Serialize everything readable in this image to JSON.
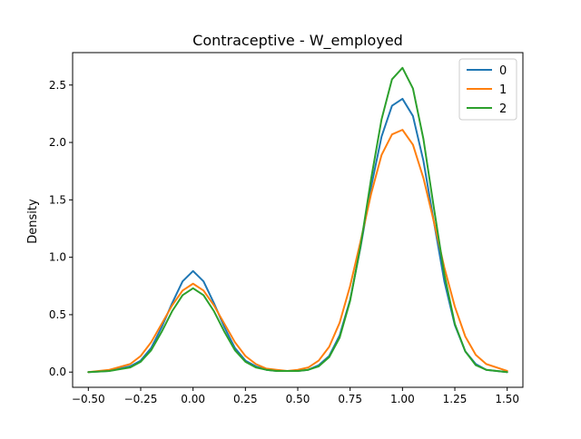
{
  "chart_data": {
    "type": "line",
    "title": "Contraceptive - W_employed",
    "xlabel": "",
    "ylabel": "Density",
    "xlim": [
      -0.575,
      1.575
    ],
    "ylim": [
      -0.1325,
      2.7825
    ],
    "xticks": [
      -0.5,
      -0.25,
      0.0,
      0.25,
      0.5,
      0.75,
      1.0,
      1.25,
      1.5
    ],
    "xtick_labels": [
      "−0.50",
      "−0.25",
      "0.00",
      "0.25",
      "0.50",
      "0.75",
      "1.00",
      "1.25",
      "1.50"
    ],
    "yticks": [
      0.0,
      0.5,
      1.0,
      1.5,
      2.0,
      2.5
    ],
    "ytick_labels": [
      "0.0",
      "0.5",
      "1.0",
      "1.5",
      "2.0",
      "2.5"
    ],
    "grid": false,
    "legend_position": "top-right",
    "series": [
      {
        "name": "0",
        "color": "#1f77b4",
        "x": [
          -0.5,
          -0.4,
          -0.3,
          -0.25,
          -0.2,
          -0.15,
          -0.1,
          -0.05,
          0.0,
          0.05,
          0.1,
          0.15,
          0.2,
          0.25,
          0.3,
          0.35,
          0.4,
          0.45,
          0.5,
          0.55,
          0.6,
          0.65,
          0.7,
          0.75,
          0.8,
          0.85,
          0.9,
          0.95,
          1.0,
          1.05,
          1.1,
          1.15,
          1.2,
          1.25,
          1.3,
          1.35,
          1.4,
          1.5
        ],
        "y": [
          0.0,
          0.01,
          0.05,
          0.1,
          0.21,
          0.39,
          0.6,
          0.79,
          0.88,
          0.79,
          0.6,
          0.39,
          0.21,
          0.1,
          0.05,
          0.02,
          0.01,
          0.01,
          0.01,
          0.02,
          0.06,
          0.14,
          0.32,
          0.63,
          1.09,
          1.61,
          2.05,
          2.32,
          2.38,
          2.23,
          1.84,
          1.31,
          0.79,
          0.41,
          0.18,
          0.07,
          0.02,
          0.0
        ]
      },
      {
        "name": "1",
        "color": "#ff7f0e",
        "x": [
          -0.5,
          -0.4,
          -0.3,
          -0.25,
          -0.2,
          -0.15,
          -0.1,
          -0.05,
          0.0,
          0.05,
          0.1,
          0.15,
          0.2,
          0.25,
          0.3,
          0.35,
          0.4,
          0.45,
          0.5,
          0.55,
          0.6,
          0.65,
          0.7,
          0.75,
          0.8,
          0.85,
          0.9,
          0.95,
          1.0,
          1.05,
          1.1,
          1.15,
          1.2,
          1.25,
          1.3,
          1.35,
          1.4,
          1.5
        ],
        "y": [
          0.0,
          0.02,
          0.07,
          0.14,
          0.26,
          0.42,
          0.58,
          0.71,
          0.77,
          0.71,
          0.58,
          0.42,
          0.26,
          0.14,
          0.07,
          0.03,
          0.02,
          0.01,
          0.02,
          0.04,
          0.1,
          0.22,
          0.43,
          0.75,
          1.14,
          1.55,
          1.89,
          2.07,
          2.11,
          1.98,
          1.69,
          1.31,
          0.91,
          0.57,
          0.31,
          0.15,
          0.07,
          0.01
        ]
      },
      {
        "name": "2",
        "color": "#2ca02c",
        "x": [
          -0.5,
          -0.4,
          -0.3,
          -0.25,
          -0.2,
          -0.15,
          -0.1,
          -0.05,
          0.0,
          0.05,
          0.1,
          0.15,
          0.2,
          0.25,
          0.3,
          0.35,
          0.4,
          0.45,
          0.5,
          0.55,
          0.6,
          0.65,
          0.7,
          0.75,
          0.8,
          0.85,
          0.9,
          0.95,
          1.0,
          1.05,
          1.1,
          1.15,
          1.2,
          1.25,
          1.3,
          1.35,
          1.4,
          1.5
        ],
        "y": [
          0.0,
          0.01,
          0.04,
          0.09,
          0.19,
          0.35,
          0.53,
          0.67,
          0.73,
          0.67,
          0.53,
          0.35,
          0.19,
          0.09,
          0.04,
          0.02,
          0.01,
          0.01,
          0.01,
          0.02,
          0.05,
          0.13,
          0.3,
          0.62,
          1.1,
          1.68,
          2.2,
          2.55,
          2.65,
          2.47,
          2.03,
          1.43,
          0.85,
          0.42,
          0.18,
          0.06,
          0.02,
          0.0
        ]
      }
    ]
  }
}
